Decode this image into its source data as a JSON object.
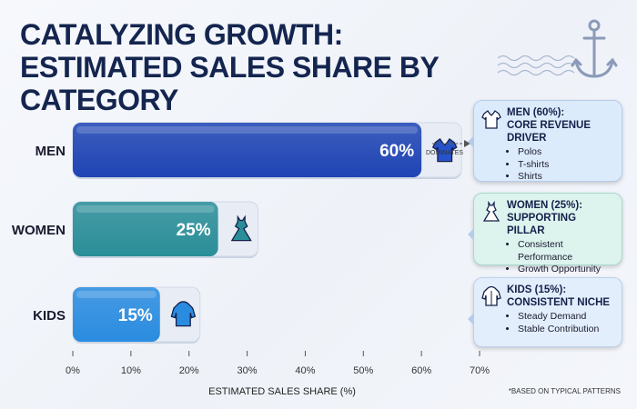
{
  "title": "CATALYZING GROWTH: ESTIMATED SALES SHARE BY CATEGORY",
  "footnote": "*BASED ON TYPICAL PATTERNS",
  "connector_label": "DOMINATES",
  "decor": {
    "anchor_icon": "anchor-icon",
    "wave_icon": "wave-lines-icon"
  },
  "colors": {
    "men": "#1f44b4",
    "women": "#2a8e98",
    "kids": "#2a8ce0",
    "track": "#e8edf5",
    "title": "#14254f"
  },
  "chart_data": {
    "type": "bar",
    "orientation": "horizontal",
    "title": "CATALYZING GROWTH: ESTIMATED SALES SHARE BY CATEGORY",
    "categories": [
      "MEN",
      "WOMEN",
      "KIDS"
    ],
    "values": [
      60,
      25,
      15
    ],
    "value_labels": [
      "60%",
      "25%",
      "15%"
    ],
    "category_icons": [
      "polo-shirt-icon",
      "dress-icon",
      "hoodie-icon"
    ],
    "xlabel": "ESTIMATED SALES SHARE (%)",
    "ylabel": "",
    "xlim": [
      0,
      70
    ],
    "xticks": [
      0,
      10,
      20,
      30,
      40,
      50,
      60,
      70
    ],
    "xtick_labels": [
      "0%",
      "10%",
      "20%",
      "30%",
      "40%",
      "50%",
      "60%",
      "70%"
    ],
    "grid": false,
    "legend": "none"
  },
  "cards": [
    {
      "title_line1": "MEN (60%):",
      "title_line2": "CORE REVENUE DRIVER",
      "icon": "polo-shirt-icon",
      "items": [
        "Polos",
        "T-shirts",
        "Shirts"
      ]
    },
    {
      "title_line1": "WOMEN (25%):",
      "title_line2": "SUPPORTING PILLAR",
      "icon": "dress-icon",
      "items": [
        "Consistent Performance",
        "Growth Opportunity"
      ]
    },
    {
      "title_line1": "KIDS (15%):",
      "title_line2": "CONSISTENT NICHE",
      "icon": "hoodie-icon",
      "items": [
        "Steady Demand",
        "Stable Contribution"
      ]
    }
  ]
}
